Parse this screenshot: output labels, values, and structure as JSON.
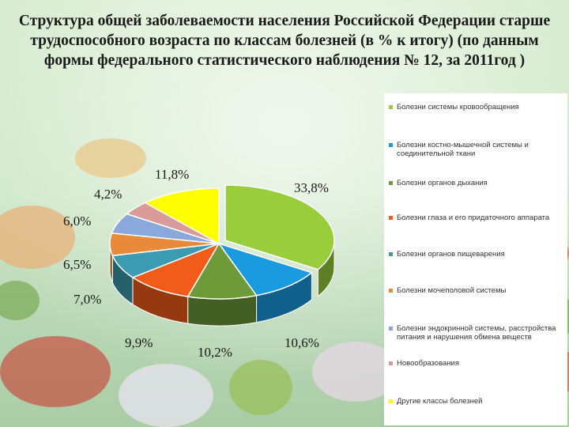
{
  "title": "Структура общей заболеваемости населения Российской Федерации старше трудоспособного возраста по классам болезней (в % к итогу) (по данным формы федерального статистического наблюдения № 12, за 2011год )",
  "chart_data": {
    "type": "pie",
    "title": "Структура общей заболеваемости населения Российской Федерации старше трудоспособного возраста по классам болезней (в % к итогу) (по данным формы федерального статистического наблюдения № 12, за 2011год )",
    "legend_position": "right",
    "slices": [
      {
        "name": "Болезни системы кровообращения",
        "value": 33.8,
        "label": "33,8%",
        "color": "#9acd3c"
      },
      {
        "name": "Болезни костно-мышечной системы и соединительной ткани",
        "value": 10.6,
        "label": "10,6%",
        "color": "#1a9be0"
      },
      {
        "name": "Болезни органов дыхания",
        "value": 10.2,
        "label": "10,2%",
        "color": "#6e9a3a"
      },
      {
        "name": "Болезни глаза и его придаточного аппарата",
        "value": 9.9,
        "label": "9,9%",
        "color": "#f25c1a"
      },
      {
        "name": "Болезни органов пищеварения",
        "value": 7.0,
        "label": "7,0%",
        "color": "#3b9bb0"
      },
      {
        "name": "Болезни мочеполовой системы",
        "value": 6.5,
        "label": "6,5%",
        "color": "#e88a3a"
      },
      {
        "name": "Болезни эндокринной системы, расстройства питания и нарушения обмена веществ",
        "value": 6.0,
        "label": "6,0%",
        "color": "#8aa8dc"
      },
      {
        "name": "Новообразования",
        "value": 4.2,
        "label": "4,2%",
        "color": "#d99a9a"
      },
      {
        "name": "Другие классы болезней",
        "value": 11.8,
        "label": "11,8%",
        "color": "#ffff00"
      }
    ]
  }
}
